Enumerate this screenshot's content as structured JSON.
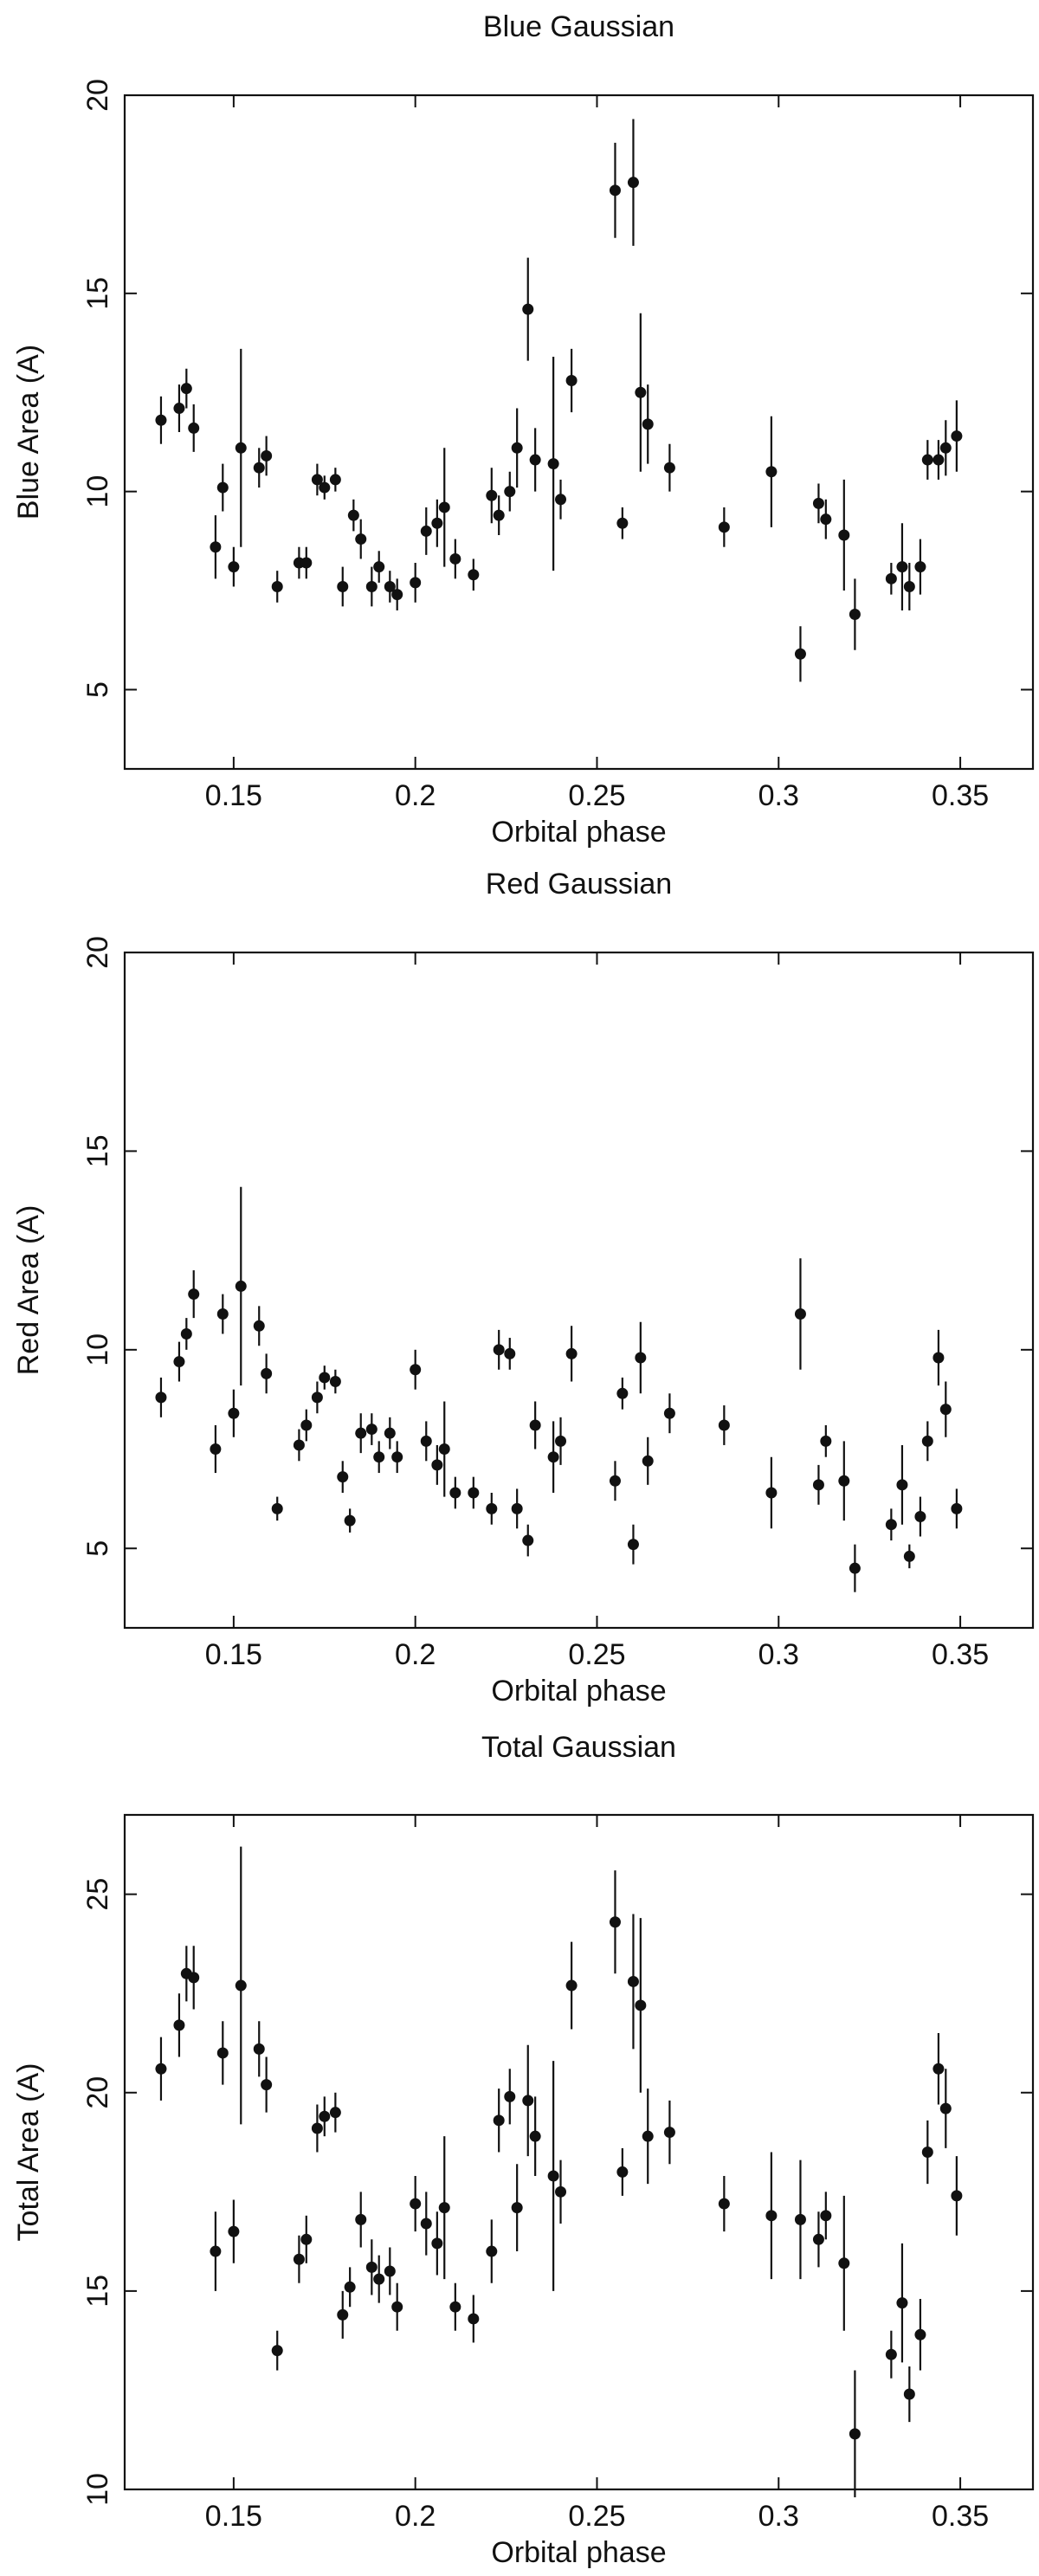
{
  "chart_data": [
    {
      "type": "scatter",
      "title": "Blue Gaussian",
      "xlabel": "Orbital phase",
      "ylabel": "Blue Area (A)",
      "xlim": [
        0.12,
        0.37
      ],
      "ylim": [
        3,
        20
      ],
      "xticks": [
        0.15,
        0.2,
        0.25,
        0.3,
        0.35
      ],
      "xtick_labels": [
        "0.15",
        "0.2",
        "0.25",
        "0.3",
        "0.35"
      ],
      "yticks": [
        5,
        10,
        15,
        20
      ],
      "ytick_labels": [
        "5",
        "10",
        "15",
        "20"
      ],
      "points": [
        {
          "x": 0.13,
          "y": 11.8,
          "err": 0.6
        },
        {
          "x": 0.135,
          "y": 12.1,
          "err": 0.6
        },
        {
          "x": 0.137,
          "y": 12.6,
          "err": 0.5
        },
        {
          "x": 0.139,
          "y": 11.6,
          "err": 0.6
        },
        {
          "x": 0.145,
          "y": 8.6,
          "err": 0.8
        },
        {
          "x": 0.147,
          "y": 10.1,
          "err": 0.6
        },
        {
          "x": 0.15,
          "y": 8.1,
          "err": 0.5
        },
        {
          "x": 0.152,
          "y": 11.1,
          "err": 2.5
        },
        {
          "x": 0.157,
          "y": 10.6,
          "err": 0.5
        },
        {
          "x": 0.159,
          "y": 10.9,
          "err": 0.5
        },
        {
          "x": 0.162,
          "y": 7.6,
          "err": 0.4
        },
        {
          "x": 0.168,
          "y": 8.2,
          "err": 0.4
        },
        {
          "x": 0.17,
          "y": 8.2,
          "err": 0.4
        },
        {
          "x": 0.173,
          "y": 10.3,
          "err": 0.4
        },
        {
          "x": 0.175,
          "y": 10.1,
          "err": 0.3
        },
        {
          "x": 0.178,
          "y": 10.3,
          "err": 0.3
        },
        {
          "x": 0.18,
          "y": 7.6,
          "err": 0.5
        },
        {
          "x": 0.183,
          "y": 9.4,
          "err": 0.4
        },
        {
          "x": 0.185,
          "y": 8.8,
          "err": 0.5
        },
        {
          "x": 0.188,
          "y": 7.6,
          "err": 0.5
        },
        {
          "x": 0.19,
          "y": 8.1,
          "err": 0.4
        },
        {
          "x": 0.193,
          "y": 7.6,
          "err": 0.4
        },
        {
          "x": 0.195,
          "y": 7.4,
          "err": 0.4
        },
        {
          "x": 0.2,
          "y": 7.7,
          "err": 0.5
        },
        {
          "x": 0.203,
          "y": 9.0,
          "err": 0.6
        },
        {
          "x": 0.206,
          "y": 9.2,
          "err": 0.6
        },
        {
          "x": 0.208,
          "y": 9.6,
          "err": 1.5
        },
        {
          "x": 0.211,
          "y": 8.3,
          "err": 0.5
        },
        {
          "x": 0.216,
          "y": 7.9,
          "err": 0.4
        },
        {
          "x": 0.221,
          "y": 9.9,
          "err": 0.7
        },
        {
          "x": 0.223,
          "y": 9.4,
          "err": 0.5
        },
        {
          "x": 0.226,
          "y": 10.0,
          "err": 0.5
        },
        {
          "x": 0.228,
          "y": 11.1,
          "err": 1.0
        },
        {
          "x": 0.231,
          "y": 14.6,
          "err": 1.3
        },
        {
          "x": 0.233,
          "y": 10.8,
          "err": 0.8
        },
        {
          "x": 0.238,
          "y": 10.7,
          "err": 2.7
        },
        {
          "x": 0.24,
          "y": 9.8,
          "err": 0.5
        },
        {
          "x": 0.243,
          "y": 12.8,
          "err": 0.8
        },
        {
          "x": 0.255,
          "y": 17.6,
          "err": 1.2
        },
        {
          "x": 0.257,
          "y": 9.2,
          "err": 0.4
        },
        {
          "x": 0.26,
          "y": 17.8,
          "err": 1.6
        },
        {
          "x": 0.262,
          "y": 12.5,
          "err": 2.0
        },
        {
          "x": 0.264,
          "y": 11.7,
          "err": 1.0
        },
        {
          "x": 0.27,
          "y": 10.6,
          "err": 0.6
        },
        {
          "x": 0.285,
          "y": 9.1,
          "err": 0.5
        },
        {
          "x": 0.298,
          "y": 10.5,
          "err": 1.4
        },
        {
          "x": 0.306,
          "y": 5.9,
          "err": 0.7
        },
        {
          "x": 0.311,
          "y": 9.7,
          "err": 0.5
        },
        {
          "x": 0.313,
          "y": 9.3,
          "err": 0.5
        },
        {
          "x": 0.318,
          "y": 8.9,
          "err": 1.4
        },
        {
          "x": 0.321,
          "y": 6.9,
          "err": 0.9
        },
        {
          "x": 0.331,
          "y": 7.8,
          "err": 0.4
        },
        {
          "x": 0.334,
          "y": 8.1,
          "err": 1.1
        },
        {
          "x": 0.336,
          "y": 7.6,
          "err": 0.6
        },
        {
          "x": 0.339,
          "y": 8.1,
          "err": 0.7
        },
        {
          "x": 0.341,
          "y": 10.8,
          "err": 0.5
        },
        {
          "x": 0.344,
          "y": 10.8,
          "err": 0.5
        },
        {
          "x": 0.346,
          "y": 11.1,
          "err": 0.7
        },
        {
          "x": 0.349,
          "y": 11.4,
          "err": 0.9
        }
      ]
    },
    {
      "type": "scatter",
      "title": "Red Gaussian",
      "xlabel": "Orbital phase",
      "ylabel": "Red Area (A)",
      "xlim": [
        0.12,
        0.37
      ],
      "ylim": [
        3,
        20
      ],
      "xticks": [
        0.15,
        0.2,
        0.25,
        0.3,
        0.35
      ],
      "xtick_labels": [
        "0.15",
        "0.2",
        "0.25",
        "0.3",
        "0.35"
      ],
      "yticks": [
        5,
        10,
        15,
        20
      ],
      "ytick_labels": [
        "5",
        "10",
        "15",
        "20"
      ],
      "points": [
        {
          "x": 0.13,
          "y": 8.8,
          "err": 0.5
        },
        {
          "x": 0.135,
          "y": 9.7,
          "err": 0.5
        },
        {
          "x": 0.137,
          "y": 10.4,
          "err": 0.4
        },
        {
          "x": 0.139,
          "y": 11.4,
          "err": 0.6
        },
        {
          "x": 0.145,
          "y": 7.5,
          "err": 0.6
        },
        {
          "x": 0.147,
          "y": 10.9,
          "err": 0.5
        },
        {
          "x": 0.15,
          "y": 8.4,
          "err": 0.6
        },
        {
          "x": 0.152,
          "y": 11.6,
          "err": 2.5
        },
        {
          "x": 0.157,
          "y": 10.6,
          "err": 0.5
        },
        {
          "x": 0.159,
          "y": 9.4,
          "err": 0.5
        },
        {
          "x": 0.162,
          "y": 6.0,
          "err": 0.3
        },
        {
          "x": 0.168,
          "y": 7.6,
          "err": 0.4
        },
        {
          "x": 0.17,
          "y": 8.1,
          "err": 0.4
        },
        {
          "x": 0.173,
          "y": 8.8,
          "err": 0.4
        },
        {
          "x": 0.175,
          "y": 9.3,
          "err": 0.3
        },
        {
          "x": 0.178,
          "y": 9.2,
          "err": 0.3
        },
        {
          "x": 0.18,
          "y": 6.8,
          "err": 0.4
        },
        {
          "x": 0.182,
          "y": 5.7,
          "err": 0.3
        },
        {
          "x": 0.185,
          "y": 7.9,
          "err": 0.5
        },
        {
          "x": 0.188,
          "y": 8.0,
          "err": 0.4
        },
        {
          "x": 0.19,
          "y": 7.3,
          "err": 0.4
        },
        {
          "x": 0.193,
          "y": 7.9,
          "err": 0.4
        },
        {
          "x": 0.195,
          "y": 7.3,
          "err": 0.4
        },
        {
          "x": 0.2,
          "y": 9.5,
          "err": 0.5
        },
        {
          "x": 0.203,
          "y": 7.7,
          "err": 0.5
        },
        {
          "x": 0.206,
          "y": 7.1,
          "err": 0.5
        },
        {
          "x": 0.208,
          "y": 7.5,
          "err": 1.2
        },
        {
          "x": 0.211,
          "y": 6.4,
          "err": 0.4
        },
        {
          "x": 0.216,
          "y": 6.4,
          "err": 0.4
        },
        {
          "x": 0.221,
          "y": 6.0,
          "err": 0.4
        },
        {
          "x": 0.223,
          "y": 10.0,
          "err": 0.5
        },
        {
          "x": 0.226,
          "y": 9.9,
          "err": 0.4
        },
        {
          "x": 0.228,
          "y": 6.0,
          "err": 0.5
        },
        {
          "x": 0.231,
          "y": 5.2,
          "err": 0.4
        },
        {
          "x": 0.233,
          "y": 8.1,
          "err": 0.6
        },
        {
          "x": 0.238,
          "y": 7.3,
          "err": 0.9
        },
        {
          "x": 0.24,
          "y": 7.7,
          "err": 0.6
        },
        {
          "x": 0.243,
          "y": 9.9,
          "err": 0.7
        },
        {
          "x": 0.255,
          "y": 6.7,
          "err": 0.5
        },
        {
          "x": 0.257,
          "y": 8.9,
          "err": 0.4
        },
        {
          "x": 0.26,
          "y": 5.1,
          "err": 0.5
        },
        {
          "x": 0.262,
          "y": 9.8,
          "err": 0.9
        },
        {
          "x": 0.264,
          "y": 7.2,
          "err": 0.6
        },
        {
          "x": 0.27,
          "y": 8.4,
          "err": 0.5
        },
        {
          "x": 0.285,
          "y": 8.1,
          "err": 0.5
        },
        {
          "x": 0.298,
          "y": 6.4,
          "err": 0.9
        },
        {
          "x": 0.306,
          "y": 10.9,
          "err": 1.4
        },
        {
          "x": 0.311,
          "y": 6.6,
          "err": 0.5
        },
        {
          "x": 0.313,
          "y": 7.7,
          "err": 0.4
        },
        {
          "x": 0.318,
          "y": 6.7,
          "err": 1.0
        },
        {
          "x": 0.321,
          "y": 4.5,
          "err": 0.6
        },
        {
          "x": 0.331,
          "y": 5.6,
          "err": 0.4
        },
        {
          "x": 0.334,
          "y": 6.6,
          "err": 1.0
        },
        {
          "x": 0.336,
          "y": 4.8,
          "err": 0.3
        },
        {
          "x": 0.339,
          "y": 5.8,
          "err": 0.5
        },
        {
          "x": 0.341,
          "y": 7.7,
          "err": 0.5
        },
        {
          "x": 0.344,
          "y": 9.8,
          "err": 0.7
        },
        {
          "x": 0.346,
          "y": 8.5,
          "err": 0.7
        },
        {
          "x": 0.349,
          "y": 6.0,
          "err": 0.5
        }
      ]
    },
    {
      "type": "scatter",
      "title": "Total Gaussian",
      "xlabel": "Orbital phase",
      "ylabel": "Total Area (A)",
      "xlim": [
        0.12,
        0.37
      ],
      "ylim": [
        10,
        27
      ],
      "xticks": [
        0.15,
        0.2,
        0.25,
        0.3,
        0.35
      ],
      "xtick_labels": [
        "0.15",
        "0.2",
        "0.25",
        "0.3",
        "0.35"
      ],
      "yticks": [
        10,
        15,
        20,
        25
      ],
      "ytick_labels": [
        "10",
        "15",
        "20",
        "25"
      ],
      "points": [
        {
          "x": 0.13,
          "y": 20.6,
          "err": 0.8
        },
        {
          "x": 0.135,
          "y": 21.7,
          "err": 0.8
        },
        {
          "x": 0.137,
          "y": 23.0,
          "err": 0.7
        },
        {
          "x": 0.139,
          "y": 22.9,
          "err": 0.8
        },
        {
          "x": 0.145,
          "y": 16.0,
          "err": 1.0
        },
        {
          "x": 0.147,
          "y": 21.0,
          "err": 0.8
        },
        {
          "x": 0.15,
          "y": 16.5,
          "err": 0.8
        },
        {
          "x": 0.152,
          "y": 22.7,
          "err": 3.5
        },
        {
          "x": 0.157,
          "y": 21.1,
          "err": 0.7
        },
        {
          "x": 0.159,
          "y": 20.2,
          "err": 0.7
        },
        {
          "x": 0.162,
          "y": 13.5,
          "err": 0.5
        },
        {
          "x": 0.168,
          "y": 15.8,
          "err": 0.6
        },
        {
          "x": 0.17,
          "y": 16.3,
          "err": 0.6
        },
        {
          "x": 0.173,
          "y": 19.1,
          "err": 0.6
        },
        {
          "x": 0.175,
          "y": 19.4,
          "err": 0.5
        },
        {
          "x": 0.178,
          "y": 19.5,
          "err": 0.5
        },
        {
          "x": 0.18,
          "y": 14.4,
          "err": 0.6
        },
        {
          "x": 0.182,
          "y": 15.1,
          "err": 0.5
        },
        {
          "x": 0.185,
          "y": 16.8,
          "err": 0.7
        },
        {
          "x": 0.188,
          "y": 15.6,
          "err": 0.7
        },
        {
          "x": 0.19,
          "y": 15.3,
          "err": 0.6
        },
        {
          "x": 0.193,
          "y": 15.5,
          "err": 0.6
        },
        {
          "x": 0.195,
          "y": 14.6,
          "err": 0.6
        },
        {
          "x": 0.2,
          "y": 17.2,
          "err": 0.7
        },
        {
          "x": 0.203,
          "y": 16.7,
          "err": 0.8
        },
        {
          "x": 0.206,
          "y": 16.2,
          "err": 0.8
        },
        {
          "x": 0.208,
          "y": 17.1,
          "err": 1.8
        },
        {
          "x": 0.211,
          "y": 14.6,
          "err": 0.6
        },
        {
          "x": 0.216,
          "y": 14.3,
          "err": 0.6
        },
        {
          "x": 0.221,
          "y": 16.0,
          "err": 0.8
        },
        {
          "x": 0.223,
          "y": 19.3,
          "err": 0.8
        },
        {
          "x": 0.226,
          "y": 19.9,
          "err": 0.7
        },
        {
          "x": 0.228,
          "y": 17.1,
          "err": 1.1
        },
        {
          "x": 0.231,
          "y": 19.8,
          "err": 1.4
        },
        {
          "x": 0.233,
          "y": 18.9,
          "err": 1.0
        },
        {
          "x": 0.238,
          "y": 17.9,
          "err": 2.9
        },
        {
          "x": 0.24,
          "y": 17.5,
          "err": 0.8
        },
        {
          "x": 0.243,
          "y": 22.7,
          "err": 1.1
        },
        {
          "x": 0.255,
          "y": 24.3,
          "err": 1.3
        },
        {
          "x": 0.257,
          "y": 18.0,
          "err": 0.6
        },
        {
          "x": 0.26,
          "y": 22.8,
          "err": 1.7
        },
        {
          "x": 0.262,
          "y": 22.2,
          "err": 2.2
        },
        {
          "x": 0.264,
          "y": 18.9,
          "err": 1.2
        },
        {
          "x": 0.27,
          "y": 19.0,
          "err": 0.8
        },
        {
          "x": 0.285,
          "y": 17.2,
          "err": 0.7
        },
        {
          "x": 0.298,
          "y": 16.9,
          "err": 1.6
        },
        {
          "x": 0.306,
          "y": 16.8,
          "err": 1.5
        },
        {
          "x": 0.311,
          "y": 16.3,
          "err": 0.7
        },
        {
          "x": 0.313,
          "y": 16.9,
          "err": 0.6
        },
        {
          "x": 0.318,
          "y": 15.7,
          "err": 1.7
        },
        {
          "x": 0.321,
          "y": 11.4,
          "err": 1.6
        },
        {
          "x": 0.331,
          "y": 13.4,
          "err": 0.6
        },
        {
          "x": 0.334,
          "y": 14.7,
          "err": 1.5
        },
        {
          "x": 0.336,
          "y": 12.4,
          "err": 0.7
        },
        {
          "x": 0.339,
          "y": 13.9,
          "err": 0.9
        },
        {
          "x": 0.341,
          "y": 18.5,
          "err": 0.8
        },
        {
          "x": 0.344,
          "y": 20.6,
          "err": 0.9
        },
        {
          "x": 0.346,
          "y": 19.6,
          "err": 1.0
        },
        {
          "x": 0.349,
          "y": 17.4,
          "err": 1.0
        }
      ]
    }
  ]
}
